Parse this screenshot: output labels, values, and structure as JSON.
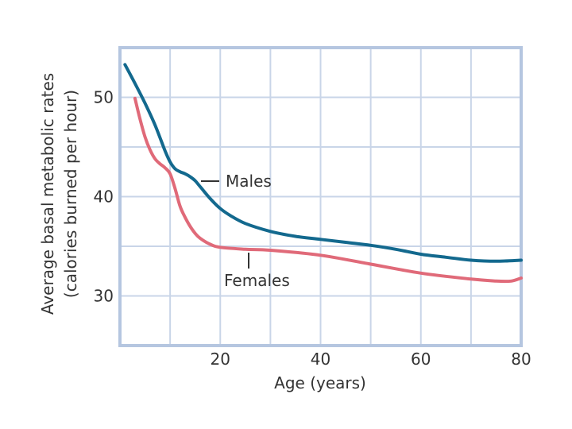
{
  "chart_data": {
    "type": "line",
    "xlabel": "Age (years)",
    "ylabel_line1": "Average basal metabolic rates",
    "ylabel_line2": "(calories burned per hour)",
    "xlim": [
      0,
      80
    ],
    "ylim": [
      25,
      55
    ],
    "x_ticks": [
      20,
      40,
      60,
      80
    ],
    "y_ticks": [
      30,
      40,
      50
    ],
    "grid": true,
    "colors": {
      "frame": "#b5c6e0",
      "grid": "#c9d5e8",
      "males": "#13698e",
      "females": "#e06a79"
    },
    "series": [
      {
        "name": "Males",
        "x": [
          1,
          3,
          5,
          7,
          9,
          10,
          11,
          12,
          13,
          14,
          15,
          16,
          18,
          20,
          22,
          25,
          30,
          35,
          40,
          45,
          50,
          55,
          60,
          65,
          70,
          75,
          80
        ],
        "y": [
          53.3,
          51.4,
          49.4,
          47.2,
          44.6,
          43.5,
          42.8,
          42.5,
          42.3,
          42.0,
          41.6,
          41.0,
          39.8,
          38.8,
          38.1,
          37.3,
          36.5,
          36.0,
          35.7,
          35.4,
          35.1,
          34.7,
          34.2,
          33.9,
          33.6,
          33.5,
          33.6
        ]
      },
      {
        "name": "Females",
        "x": [
          3,
          4,
          5,
          6,
          7,
          8,
          9,
          10,
          11,
          12,
          13,
          14,
          15,
          16,
          18,
          20,
          25,
          30,
          40,
          50,
          60,
          70,
          75,
          78,
          80
        ],
        "y": [
          49.9,
          47.8,
          46.0,
          44.7,
          43.8,
          43.3,
          42.9,
          42.3,
          40.8,
          39.0,
          37.9,
          37.0,
          36.3,
          35.8,
          35.2,
          34.9,
          34.7,
          34.6,
          34.1,
          33.2,
          32.3,
          31.7,
          31.5,
          31.5,
          31.8
        ]
      }
    ],
    "annotations": {
      "males_label": "Males",
      "females_label": "Females"
    }
  }
}
